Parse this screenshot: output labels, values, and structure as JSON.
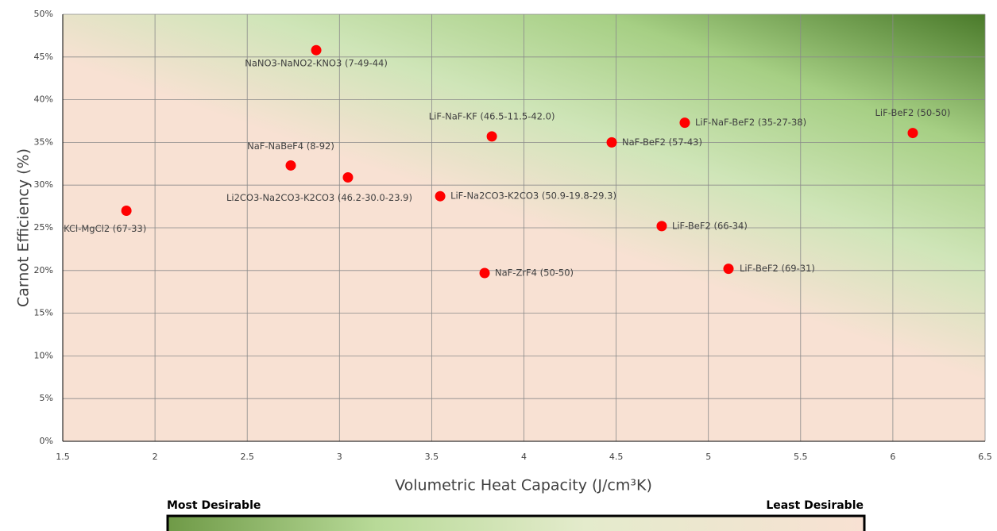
{
  "chart_data": {
    "type": "scatter",
    "x_label": "Volumetric Heat Capacity (J/cm³K)",
    "y_label": "Carnot Efficiency (%)",
    "xlim": [
      1.5,
      6.5
    ],
    "ylim": [
      0,
      50
    ],
    "xticks": [
      1.5,
      2,
      2.5,
      3,
      3.5,
      4,
      4.5,
      5,
      5.5,
      6,
      6.5
    ],
    "yticks": [
      {
        "value": 0,
        "label": "0%"
      },
      {
        "value": 5,
        "label": "5%"
      },
      {
        "value": 10,
        "label": "10%"
      },
      {
        "value": 15,
        "label": "15%"
      },
      {
        "value": 20,
        "label": "20%"
      },
      {
        "value": 25,
        "label": "25%"
      },
      {
        "value": 30,
        "label": "30%"
      },
      {
        "value": 35,
        "label": "35%"
      },
      {
        "value": 40,
        "label": "40%"
      },
      {
        "value": 45,
        "label": "45%"
      },
      {
        "value": 50,
        "label": "50%"
      }
    ],
    "grid": true,
    "color": "#ff0000",
    "point_labels": [
      "KCl-MgCl2 (67-33)",
      "NaNO3-NaNO2-KNO3 (7-49-44)",
      "NaF-NaBeF4 (8-92)",
      "Li2CO3-Na2CO3-K2CO3 (46.2-30.0-23.9)",
      "LiF-NaF-KF (46.5-11.5-42.0)",
      "LiF-Na2CO3-K2CO3 (50.9-19.8-29.3)",
      "NaF-ZrF4 (50-50)",
      "NaF-BeF2 (57-43)",
      "LiF-NaF-BeF2 (35-27-38)",
      "LiF-BeF2  (66-34)",
      "LiF-BeF2 (69-31)",
      "LiF-BeF2 (50-50)"
    ],
    "x": [
      1.845,
      2.874,
      2.736,
      3.046,
      3.826,
      3.546,
      3.787,
      4.476,
      4.872,
      4.747,
      5.109,
      6.108
    ],
    "values": [
      27.0,
      45.8,
      32.3,
      30.9,
      35.7,
      28.7,
      19.7,
      35.0,
      37.3,
      25.2,
      20.2,
      36.1
    ],
    "legend_scale": {
      "left": "Most Desirable",
      "right": "Least Desirable"
    }
  }
}
